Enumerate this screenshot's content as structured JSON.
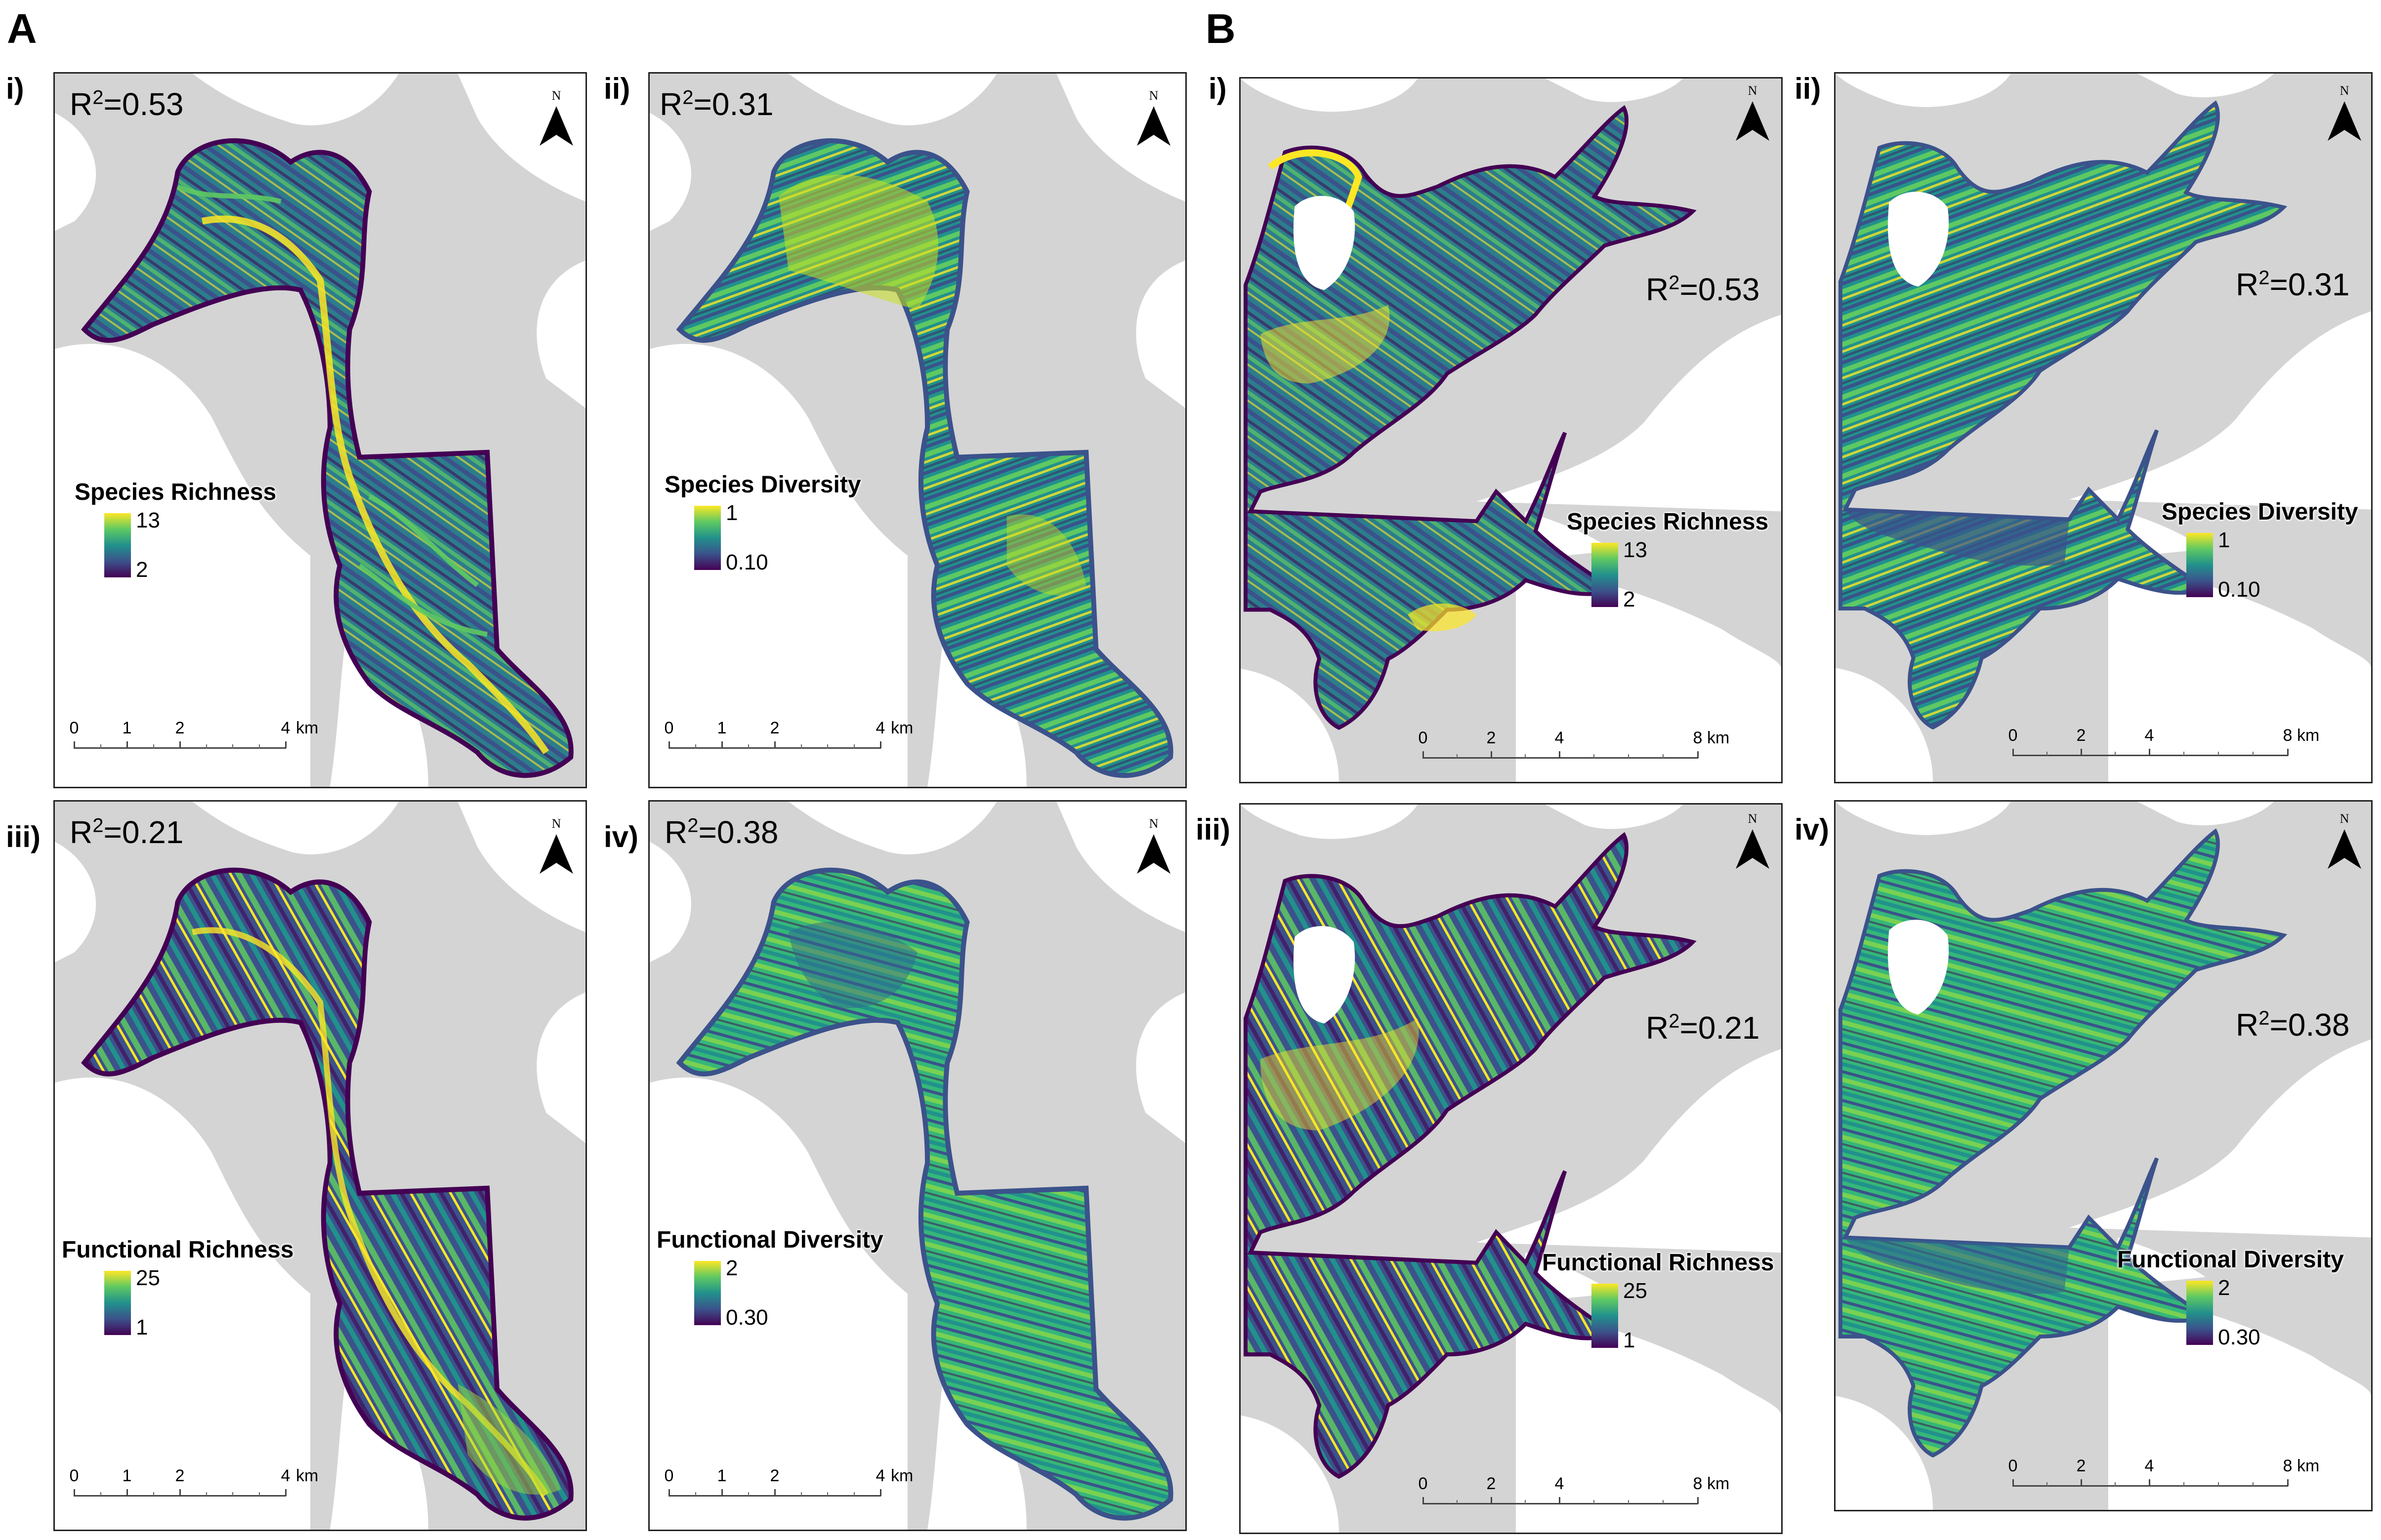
{
  "figure": {
    "section_a": "A",
    "section_b": "B",
    "north_letter": "N",
    "colors": {
      "land": "#d4d4d4",
      "water_background": "#ffffff",
      "viridis": [
        "#440154",
        "#3b528b",
        "#21918c",
        "#5ec962",
        "#fde725"
      ]
    }
  },
  "sections": {
    "A": {
      "scale": {
        "ticks": [
          "0",
          "1",
          "2",
          "4"
        ],
        "unit": "km"
      },
      "panels": [
        {
          "label": "i)",
          "r2_prefix": "R",
          "r2_exp": "2",
          "r2_value": "=0.53",
          "legend_title": "Species Richness",
          "legend_max": "13",
          "legend_min": "2"
        },
        {
          "label": "ii)",
          "r2_prefix": "R",
          "r2_exp": "2",
          "r2_value": "=0.31",
          "legend_title": "Species Diversity",
          "legend_max": "1",
          "legend_min": "0.10"
        },
        {
          "label": "iii)",
          "r2_prefix": "R",
          "r2_exp": "2",
          "r2_value": "=0.21",
          "legend_title": "Functional Richness",
          "legend_max": "25",
          "legend_min": "1"
        },
        {
          "label": "iv)",
          "r2_prefix": "R",
          "r2_exp": "2",
          "r2_value": "=0.38",
          "legend_title": "Functional Diversity",
          "legend_max": "2",
          "legend_min": "0.30"
        }
      ]
    },
    "B": {
      "scale": {
        "ticks": [
          "0",
          "2",
          "4",
          "8"
        ],
        "unit": "km"
      },
      "panels": [
        {
          "label": "i)",
          "r2_prefix": "R",
          "r2_exp": "2",
          "r2_value": "=0.53",
          "legend_title": "Species Richness",
          "legend_max": "13",
          "legend_min": "2"
        },
        {
          "label": "ii)",
          "r2_prefix": "R",
          "r2_exp": "2",
          "r2_value": "=0.31",
          "legend_title": "Species Diversity",
          "legend_max": "1",
          "legend_min": "0.10"
        },
        {
          "label": "iii)",
          "r2_prefix": "R",
          "r2_exp": "2",
          "r2_value": "=0.21",
          "legend_title": "Functional Richness",
          "legend_max": "25",
          "legend_min": "1"
        },
        {
          "label": "iv)",
          "r2_prefix": "R",
          "r2_exp": "2",
          "r2_value": "=0.38",
          "legend_title": "Functional Diversity",
          "legend_max": "2",
          "legend_min": "0.30"
        }
      ]
    }
  }
}
